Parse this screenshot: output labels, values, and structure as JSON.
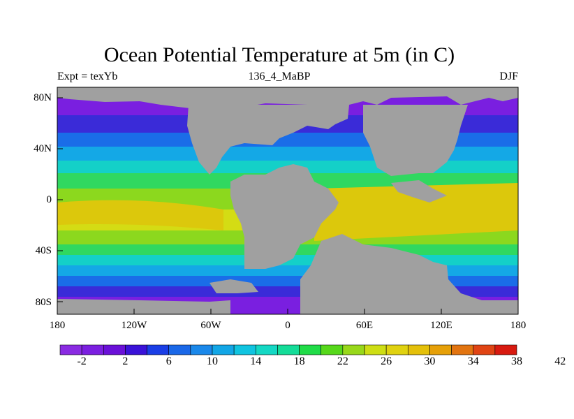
{
  "title": "Ocean Potential Temperature at 5m (in C)",
  "subtitle_left": "Expt = texYb",
  "subtitle_center": "136_4_MaBP",
  "subtitle_right": "DJF",
  "lat_labels": [
    "80N",
    "40N",
    "0",
    "40S",
    "80S"
  ],
  "lon_labels": [
    "180",
    "120W",
    "60W",
    "0",
    "60E",
    "120E",
    "180"
  ],
  "colorbar_labels": [
    "-2",
    "2",
    "6",
    "10",
    "14",
    "18",
    "22",
    "26",
    "30",
    "34",
    "38",
    "42"
  ],
  "colorbar_colors": [
    "#8a2be2",
    "#7b1fe0",
    "#6a10d8",
    "#3a12d8",
    "#1a3ee6",
    "#1a68e8",
    "#1a88ea",
    "#12a6e6",
    "#10c4e0",
    "#14d8c4",
    "#14dc98",
    "#20dc48",
    "#56d81a",
    "#98d81a",
    "#cede14",
    "#e0d210",
    "#e4c00a",
    "#e6a008",
    "#e27410",
    "#e04414",
    "#d81a10"
  ],
  "land_color": "#a0a0a0",
  "ocean_bands": [
    {
      "color": "#7a1fe0"
    },
    {
      "color": "#3a2bd8"
    },
    {
      "color": "#1a6de8"
    },
    {
      "color": "#14a8e6"
    },
    {
      "color": "#14d0c8"
    },
    {
      "color": "#30d860"
    },
    {
      "color": "#8cd81e"
    },
    {
      "color": "#d4dc14"
    },
    {
      "color": "#dcc80c"
    }
  ]
}
